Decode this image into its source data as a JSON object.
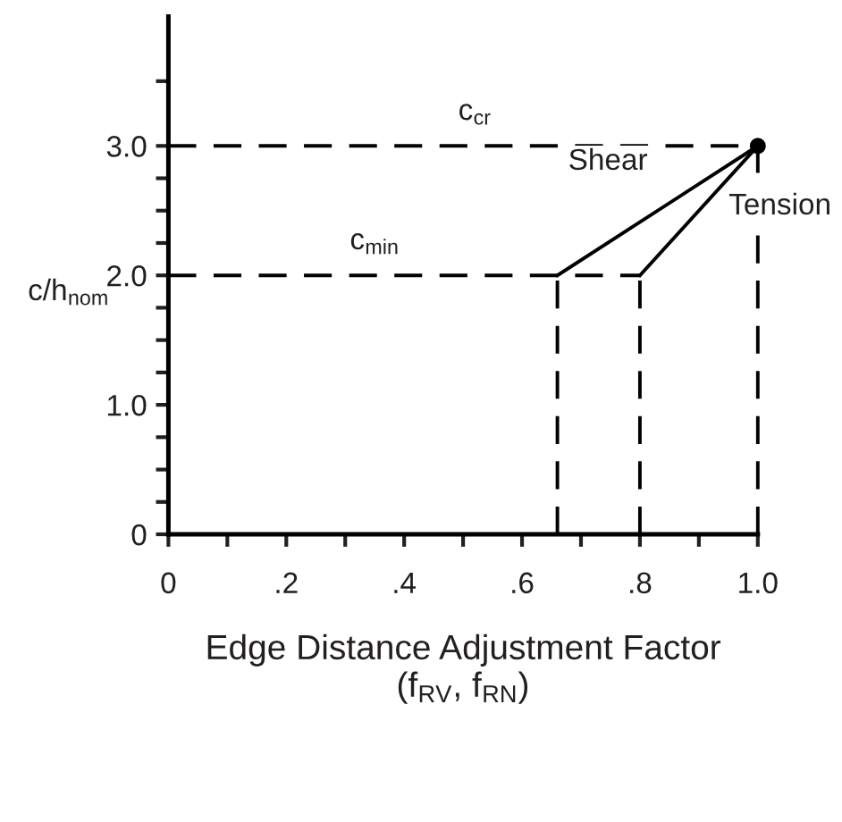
{
  "chart_data": {
    "type": "line",
    "xlabel": "Edge Distance Adjustment Factor\n(f$_{RV}$, f$_{RN}$)",
    "ylabel": "c/h$_{nom}$",
    "xlim": [
      0,
      1.0
    ],
    "ylim": [
      0,
      4.0
    ],
    "xticks": [
      0,
      {
        "value": 0.1,
        "label": null
      },
      {
        "value": 0.2,
        "label": ".2"
      },
      {
        "value": 0.3,
        "label": null
      },
      {
        "value": 0.4,
        "label": ".4"
      },
      {
        "value": 0.5,
        "label": null
      },
      {
        "value": 0.6,
        "label": ".6"
      },
      {
        "value": 0.7,
        "label": null
      },
      {
        "value": 0.8,
        "label": ".8"
      },
      {
        "value": 0.9,
        "label": null
      },
      {
        "value": 1.0,
        "label": "1.0"
      }
    ],
    "yticks": [
      0,
      {
        "value": 0.25,
        "label": null
      },
      {
        "value": 0.5,
        "label": null
      },
      {
        "value": 0.75,
        "label": null
      },
      {
        "value": 1.0,
        "label": "1.0"
      },
      {
        "value": 1.25,
        "label": null
      },
      {
        "value": 1.5,
        "label": null
      },
      {
        "value": 1.75,
        "label": null
      },
      {
        "value": 2.0,
        "label": "2.0"
      },
      {
        "value": 2.25,
        "label": null
      },
      {
        "value": 2.5,
        "label": null
      },
      {
        "value": 2.75,
        "label": null
      },
      {
        "value": 3.0,
        "label": "3.0"
      },
      {
        "value": 3.5,
        "label": null
      }
    ],
    "grid": false,
    "legend": false,
    "series": [
      {
        "color": "#000000",
        "x": [
          0.66,
          1.0
        ],
        "values": [
          2.0,
          3.0
        ],
        "line_style": "solid"
      },
      {
        "color": "#000000",
        "x": [
          0.8,
          1.0
        ],
        "values": [
          2.0,
          3.0
        ],
        "line_style": "solid"
      },
      {
        "color": "#000000",
        "x": [
          0,
          1.0
        ],
        "values": [
          3.0,
          3.0
        ],
        "line_style": "dashed"
      },
      {
        "color": "#000000",
        "x": [
          0,
          0.8
        ],
        "values": [
          2.0,
          2.0
        ],
        "line_style": "dashed"
      },
      {
        "color": "#000000",
        "x": [
          0.66,
          0.66
        ],
        "values": [
          0,
          2.0
        ],
        "line_style": "dashed"
      },
      {
        "color": "#000000",
        "x": [
          0.8,
          0.8
        ],
        "values": [
          0,
          2.0
        ],
        "line_style": "dashed"
      },
      {
        "color": "#000000",
        "x": [
          1.0,
          1.0
        ],
        "values": [
          0,
          3.0
        ],
        "line_style": "dashed"
      },
      {
        "type": "scatter",
        "color": "#000000",
        "x": [
          1.0
        ],
        "values": [
          3.0
        ],
        "marker": "circle"
      }
    ],
    "annotations": [
      {
        "text": "c$_{cr}$",
        "x": 0.52,
        "y": 3.0
      },
      {
        "text": "c$_{min}$",
        "x": 0.35,
        "y": 2.0
      },
      {
        "text": "Shear",
        "x": 0.83,
        "y": 2.5
      },
      {
        "text": "Tension",
        "x": 0.9,
        "y": 2.5
      }
    ]
  }
}
